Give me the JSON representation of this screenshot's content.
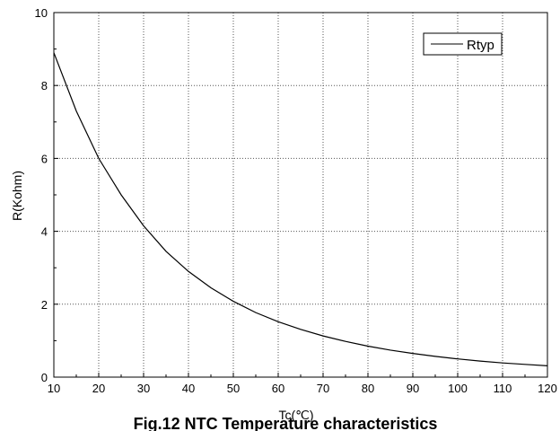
{
  "chart_data": {
    "type": "line",
    "caption": "Fig.12 NTC Temperature characteristics",
    "xlabel": "Tc(℃)",
    "ylabel": "R(Kohm)",
    "xlim": [
      10,
      120
    ],
    "ylim": [
      0,
      10
    ],
    "xticks": [
      10,
      20,
      30,
      40,
      50,
      60,
      70,
      80,
      90,
      100,
      110,
      120
    ],
    "yticks": [
      0,
      2,
      4,
      6,
      8,
      10
    ],
    "grid": true,
    "grid_style": "dotted",
    "legend_position": "top-right",
    "series": [
      {
        "name": "Rtyp",
        "color": "#000000",
        "x": [
          10,
          15,
          20,
          25,
          30,
          35,
          40,
          45,
          50,
          55,
          60,
          65,
          70,
          75,
          80,
          85,
          90,
          95,
          100,
          105,
          110,
          115,
          120
        ],
        "y": [
          8.9,
          7.3,
          6.0,
          5.0,
          4.15,
          3.45,
          2.9,
          2.45,
          2.08,
          1.77,
          1.52,
          1.31,
          1.13,
          0.98,
          0.85,
          0.74,
          0.65,
          0.57,
          0.5,
          0.44,
          0.39,
          0.35,
          0.31
        ]
      }
    ]
  }
}
